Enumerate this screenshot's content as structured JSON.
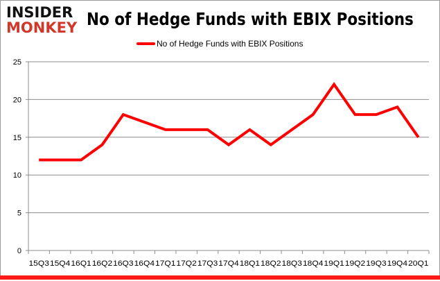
{
  "logo": {
    "line1": "INSIDER",
    "line2": "MONKEY"
  },
  "chart_data": {
    "type": "line",
    "title": "No of Hedge Funds with EBIX Positions",
    "xlabel": "",
    "ylabel": "",
    "categories": [
      "15Q3",
      "15Q4",
      "16Q1",
      "16Q2",
      "16Q3",
      "16Q4",
      "17Q1",
      "17Q2",
      "17Q3",
      "17Q4",
      "18Q1",
      "18Q2",
      "18Q3",
      "18Q4",
      "19Q1",
      "19Q2",
      "19Q3",
      "19Q4",
      "20Q1"
    ],
    "series": [
      {
        "name": "No of Hedge Funds with EBIX Positions",
        "values": [
          12,
          12,
          12,
          14,
          18,
          17,
          16,
          16,
          16,
          14,
          16,
          14,
          16,
          18,
          22,
          18,
          18,
          19,
          15
        ],
        "color": "#ff0000"
      }
    ],
    "ylim": [
      0,
      25
    ],
    "yticks": [
      0,
      5,
      10,
      15,
      20,
      25
    ],
    "grid": true,
    "legend": "top-center"
  }
}
